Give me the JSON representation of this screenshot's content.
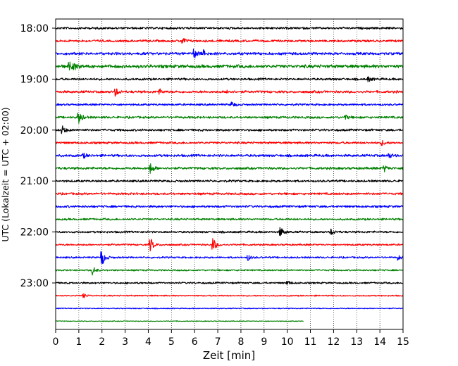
{
  "chart_data": {
    "type": "line",
    "title": "",
    "xlabel": "Zeit  [min]",
    "ylabel": "UTC (Lokalzeit = UTC + 02:00)",
    "xlim": [
      0,
      15
    ],
    "x_ticks": [
      "0",
      "1",
      "2",
      "3",
      "4",
      "5",
      "6",
      "7",
      "8",
      "9",
      "10",
      "11",
      "12",
      "13",
      "14",
      "15"
    ],
    "y_ticks": [
      "18:00",
      "19:00",
      "20:00",
      "21:00",
      "22:00",
      "23:00"
    ],
    "grid": "vertical dotted at each minute",
    "row_minutes": 15,
    "colors": [
      "#000000",
      "#ff0000",
      "#0000ff",
      "#008000"
    ],
    "series": [
      {
        "start": "18:00",
        "end_min": 15,
        "events": [],
        "amp": 1.0
      },
      {
        "start": "18:15",
        "end_min": 15,
        "events": [
          [
            5.5,
            4
          ]
        ],
        "amp": 1.0
      },
      {
        "start": "18:30",
        "end_min": 15,
        "events": [
          [
            6.0,
            6
          ],
          [
            6.4,
            4
          ]
        ],
        "amp": 1.2
      },
      {
        "start": "18:45",
        "end_min": 15,
        "events": [
          [
            0.6,
            5
          ],
          [
            0.8,
            4
          ]
        ],
        "amp": 1.5
      },
      {
        "start": "19:00",
        "end_min": 15,
        "events": [
          [
            13.5,
            3
          ]
        ],
        "amp": 1.0
      },
      {
        "start": "19:15",
        "end_min": 15,
        "events": [
          [
            2.6,
            5
          ],
          [
            4.5,
            3
          ],
          [
            7.4,
            3
          ]
        ],
        "amp": 1.1
      },
      {
        "start": "19:30",
        "end_min": 15,
        "events": [
          [
            7.6,
            4
          ]
        ],
        "amp": 0.9
      },
      {
        "start": "19:45",
        "end_min": 15,
        "events": [
          [
            1.0,
            8
          ],
          [
            12.5,
            3
          ]
        ],
        "amp": 1.0
      },
      {
        "start": "20:00",
        "end_min": 15,
        "events": [
          [
            0.3,
            5
          ]
        ],
        "amp": 1.0
      },
      {
        "start": "20:15",
        "end_min": 15,
        "events": [
          [
            14.1,
            3
          ]
        ],
        "amp": 1.0
      },
      {
        "start": "20:30",
        "end_min": 15,
        "events": [
          [
            1.2,
            3
          ],
          [
            14.4,
            3
          ]
        ],
        "amp": 1.1
      },
      {
        "start": "20:45",
        "end_min": 15,
        "events": [
          [
            4.1,
            7
          ],
          [
            14.2,
            4
          ]
        ],
        "amp": 1.1
      },
      {
        "start": "21:00",
        "end_min": 15,
        "events": [],
        "amp": 1.0
      },
      {
        "start": "21:15",
        "end_min": 15,
        "events": [],
        "amp": 1.0
      },
      {
        "start": "21:30",
        "end_min": 15,
        "events": [],
        "amp": 1.0
      },
      {
        "start": "21:45",
        "end_min": 15,
        "events": [],
        "amp": 0.9
      },
      {
        "start": "22:00",
        "end_min": 15,
        "events": [
          [
            9.7,
            7
          ],
          [
            11.9,
            4
          ]
        ],
        "amp": 0.9
      },
      {
        "start": "22:15",
        "end_min": 15,
        "events": [
          [
            4.1,
            9
          ],
          [
            6.8,
            9
          ]
        ],
        "amp": 0.8
      },
      {
        "start": "22:30",
        "end_min": 15,
        "events": [
          [
            2.0,
            11
          ],
          [
            8.3,
            4
          ],
          [
            14.8,
            3
          ]
        ],
        "amp": 0.8
      },
      {
        "start": "22:45",
        "end_min": 15,
        "events": [
          [
            1.6,
            6
          ]
        ],
        "amp": 0.7
      },
      {
        "start": "23:00",
        "end_min": 15,
        "events": [
          [
            10.0,
            3
          ]
        ],
        "amp": 0.8
      },
      {
        "start": "23:15",
        "end_min": 15,
        "events": [
          [
            1.2,
            3
          ]
        ],
        "amp": 0.6
      },
      {
        "start": "23:30",
        "end_min": 15,
        "events": [],
        "amp": 0.45
      },
      {
        "start": "23:45",
        "end_min": 10.7,
        "events": [],
        "amp": 0.35
      }
    ]
  }
}
